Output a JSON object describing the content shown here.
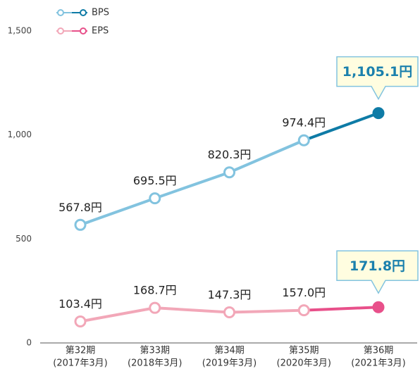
{
  "chart_data": {
    "type": "line",
    "categories": [
      "第32期",
      "第33期",
      "第34期",
      "第35期",
      "第36期"
    ],
    "category_dates": [
      "(2017年3月)",
      "(2018年3月)",
      "(2019年3月)",
      "(2020年3月)",
      "(2021年3月)"
    ],
    "ylim": [
      0,
      1500
    ],
    "yticks": [
      0,
      500,
      {
        "value": 1000,
        "label": "1,000"
      },
      {
        "value": 1500,
        "label": "1,500"
      }
    ],
    "grid": false,
    "legend": "top-left",
    "series": [
      {
        "name": "BPS",
        "color": "#82c3df",
        "highlight_color": "#0e7ba6",
        "values": [
          567.8,
          695.5,
          820.3,
          974.4,
          1105.1
        ],
        "value_labels": [
          "567.8円",
          "695.5円",
          "820.3円",
          "974.4円",
          "1,105.1円"
        ]
      },
      {
        "name": "EPS",
        "color": "#f2a7b8",
        "highlight_color": "#e8508a",
        "values": [
          103.4,
          168.7,
          147.3,
          157.0,
          171.8
        ],
        "value_labels": [
          "103.4円",
          "168.7円",
          "147.3円",
          "157.0円",
          "171.8円"
        ]
      }
    ]
  }
}
